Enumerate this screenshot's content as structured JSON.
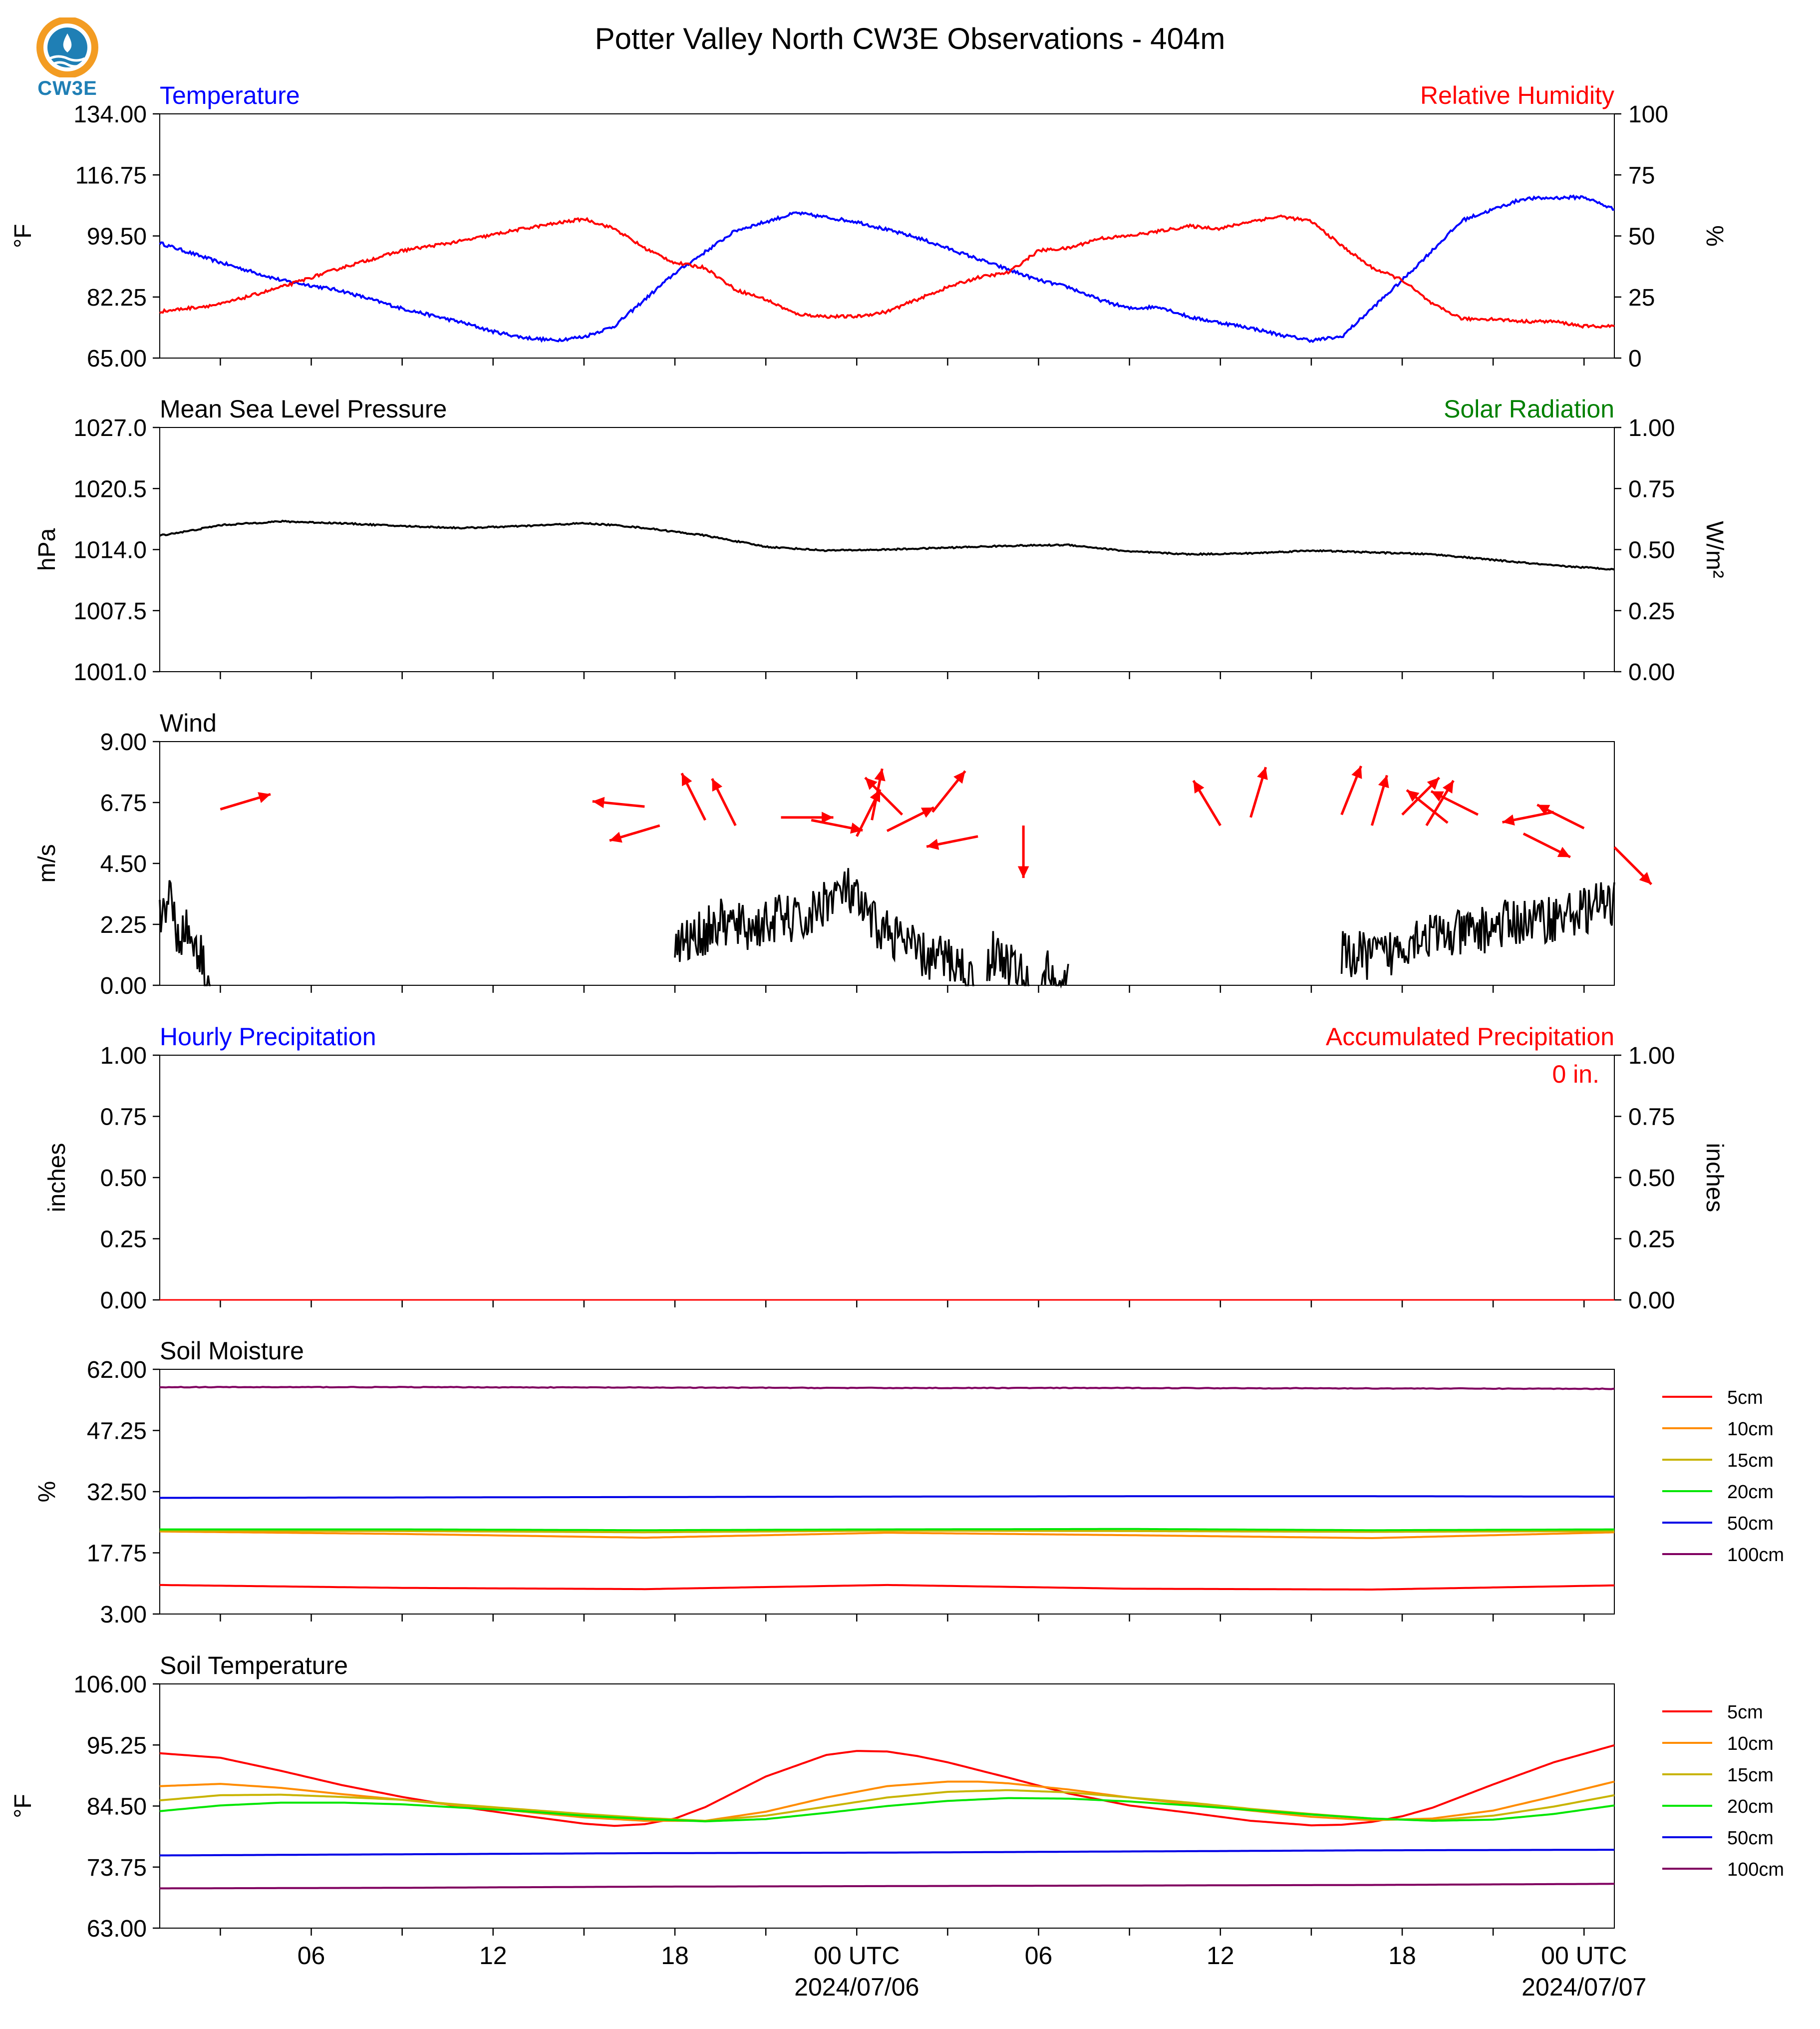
{
  "title": "Potter Valley North CW3E Observations - 404m",
  "logo": {
    "text": "CW3E",
    "colors": {
      "sun": "#f39c22",
      "water": "#1f7fb5"
    }
  },
  "colors": {
    "temperature": "#0000ff",
    "humidity": "#ff0000",
    "pressure": "#000000",
    "solar": "#008000",
    "wind_vector": "#ff0000",
    "wind_speed": "#000000",
    "hourly_precip": "#0000ff",
    "accum_precip": "#ff0000"
  },
  "x_axis": {
    "tick_labels": [
      "06",
      "12",
      "18",
      "00 UTC",
      "06",
      "12",
      "18",
      "00 UTC"
    ],
    "tick_hours": [
      6,
      12,
      18,
      24,
      30,
      36,
      42,
      48
    ],
    "date_labels": [
      {
        "hour": 24,
        "text": "2024/07/06"
      },
      {
        "hour": 48,
        "text": "2024/07/07"
      }
    ],
    "range_hours": [
      1,
      49
    ]
  },
  "panels": {
    "temp_rh": {
      "left_title": "Temperature",
      "right_title": "Relative Humidity",
      "ylabel_left": "°F",
      "ylabel_right": "%",
      "left_ticks": [
        "134.00",
        "116.75",
        "99.50",
        "82.25",
        "65.00"
      ],
      "left_range": [
        65,
        134
      ],
      "right_ticks": [
        "100",
        "75",
        "50",
        "25",
        "0"
      ],
      "right_range": [
        0,
        100
      ]
    },
    "pressure": {
      "left_title": "Mean Sea Level Pressure",
      "right_title": "Solar Radiation",
      "ylabel_left": "hPa",
      "ylabel_right": "W/m²",
      "left_ticks": [
        "1027.0",
        "1020.5",
        "1014.0",
        "1007.5",
        "1001.0"
      ],
      "left_range": [
        1001,
        1027
      ],
      "right_ticks": [
        "1.00",
        "0.75",
        "0.50",
        "0.25",
        "0.00"
      ],
      "right_range": [
        0,
        1
      ]
    },
    "wind": {
      "left_title": "Wind",
      "ylabel_left": "m/s",
      "left_ticks": [
        "9.00",
        "6.75",
        "4.50",
        "2.25",
        "0.00"
      ],
      "left_range": [
        0,
        9
      ]
    },
    "precip": {
      "left_title": "Hourly Precipitation",
      "right_title": "Accumulated Precipitation",
      "ylabel_left": "inches",
      "ylabel_right": "inches",
      "left_ticks": [
        "1.00",
        "0.75",
        "0.50",
        "0.25",
        "0.00"
      ],
      "left_range": [
        0,
        1
      ],
      "right_ticks": [
        "1.00",
        "0.75",
        "0.50",
        "0.25",
        "0.00"
      ],
      "right_range": [
        0,
        1
      ],
      "annotation": "0 in."
    },
    "soil_moisture": {
      "left_title": "Soil Moisture",
      "ylabel_left": "%",
      "left_ticks": [
        "62.00",
        "47.25",
        "32.50",
        "17.75",
        "3.00"
      ],
      "left_range": [
        3,
        62
      ]
    },
    "soil_temp": {
      "left_title": "Soil Temperature",
      "ylabel_left": "°F",
      "left_ticks": [
        "106.00",
        "95.25",
        "84.50",
        "73.75",
        "63.00"
      ],
      "left_range": [
        63,
        106
      ]
    }
  },
  "legend_depths": [
    {
      "name": "5cm",
      "color": "#ff0000"
    },
    {
      "name": "10cm",
      "color": "#ff8c00"
    },
    {
      "name": "15cm",
      "color": "#c8b400"
    },
    {
      "name": "20cm",
      "color": "#00e600"
    },
    {
      "name": "50cm",
      "color": "#0000e6"
    },
    {
      "name": "100cm",
      "color": "#800060"
    }
  ],
  "chart_data": [
    {
      "type": "line",
      "title": "Temperature / Relative Humidity",
      "series": [
        {
          "name": "Temperature",
          "axis": "left",
          "x": [
            1,
            3,
            5,
            7,
            9,
            11,
            12,
            13,
            14,
            15,
            16,
            18,
            20,
            22,
            24,
            26,
            28,
            30,
            31,
            32,
            33,
            34,
            35,
            36,
            37,
            38,
            39,
            40,
            42,
            44,
            46,
            48,
            49
          ],
          "y": [
            97.5,
            92,
            87,
            84,
            79,
            75,
            72.5,
            70.8,
            70,
            71,
            74,
            89,
            101,
            106,
            103.5,
            99,
            93,
            87,
            85,
            81.5,
            79,
            79.5,
            76.5,
            75,
            73.5,
            71.5,
            70,
            71,
            87,
            104,
            110,
            110.5,
            107
          ]
        },
        {
          "name": "Relative Humidity",
          "axis": "right",
          "x": [
            1,
            3,
            5,
            7,
            9,
            11,
            13,
            14,
            15,
            16,
            17,
            18,
            19,
            20,
            21,
            22,
            23,
            24,
            25,
            26,
            27,
            28,
            29,
            30,
            31,
            32,
            33,
            34,
            35,
            36,
            37,
            38,
            39,
            40,
            41,
            42,
            43,
            44,
            45,
            46,
            47,
            48,
            49
          ],
          "y": [
            19,
            22,
            29,
            37,
            44,
            48,
            53,
            55,
            57,
            53,
            45,
            39,
            37,
            28,
            24,
            18,
            17,
            17,
            19,
            24,
            29,
            33,
            35,
            44,
            45,
            49,
            50,
            52,
            54,
            53,
            56,
            58,
            56,
            46,
            37,
            32,
            22,
            16,
            16,
            15,
            15,
            13,
            13
          ]
        }
      ]
    },
    {
      "type": "line",
      "title": "Mean Sea Level Pressure",
      "series": [
        {
          "name": "Mean Sea Level Pressure",
          "x": [
            1,
            2,
            3,
            5,
            7,
            9,
            11,
            13,
            15,
            16,
            17,
            19,
            21,
            23,
            25,
            27,
            29,
            31,
            33,
            35,
            37,
            39,
            41,
            43,
            45,
            47,
            49
          ],
          "y": [
            1015.5,
            1016.0,
            1016.6,
            1017.0,
            1016.8,
            1016.5,
            1016.3,
            1016.5,
            1016.8,
            1016.6,
            1016.3,
            1015.5,
            1014.3,
            1013.9,
            1014.0,
            1014.2,
            1014.4,
            1014.5,
            1013.8,
            1013.5,
            1013.6,
            1013.9,
            1013.7,
            1013.5,
            1012.9,
            1012.3,
            1011.9
          ]
        }
      ]
    },
    {
      "type": "line",
      "title": "Wind",
      "series": [
        {
          "name": "Wind Speed",
          "x": [
            1,
            1.3,
            1.6,
            2.0,
            2.4,
            2.6,
            18.0,
            18.7,
            19.5,
            20.5,
            21.5,
            22.3,
            23.0,
            23.7,
            24.5,
            25.3,
            26.3,
            27.0,
            27.6,
            27.8,
            28.5,
            29.2,
            29.6,
            30.2,
            30.6,
            31.0,
            32.0,
            33.0,
            34.0,
            35.0,
            37.5,
            38.5,
            39.5,
            40.5,
            41.5,
            42.5,
            43.5,
            44.5,
            45.5,
            46.5,
            47.5,
            48.3,
            49.0
          ],
          "y": [
            2.4,
            3.5,
            1.9,
            2.0,
            1.0,
            0.0,
            1.4,
            1.8,
            2.3,
            2.1,
            2.5,
            2.3,
            3.2,
            3.5,
            2.3,
            1.8,
            1.0,
            1.0,
            0.6,
            0.0,
            1.2,
            0.7,
            0.0,
            0.6,
            0.0,
            0.0,
            0.0,
            0.0,
            0.0,
            0.0,
            0.7,
            0.9,
            1.1,
            1.1,
            1.1,
            1.9,
            1.8,
            2.0,
            2.3,
            2.4,
            2.6,
            2.9,
            3.0
          ]
        },
        {
          "name": "Wind Direction",
          "x": [
            3,
            17.0,
            17.5,
            19.0,
            20.0,
            21.5,
            22.5,
            24.0,
            24.5,
            25.0,
            25.5,
            26.5,
            28.0,
            29.5,
            36.0,
            37.0,
            40.0,
            41.0,
            42.0,
            42.8,
            43.5,
            44.5,
            46.0,
            47.0,
            48.0,
            49.0
          ],
          "y": [
            6.5,
            6.6,
            5.9,
            6.1,
            5.9,
            6.2,
            6.1,
            5.5,
            6.1,
            5.7,
            6.3,
            6.4,
            5.5,
            5.9,
            5.9,
            6.2,
            6.3,
            5.9,
            6.3,
            5.9,
            6.0,
            6.3,
            5.6,
            6.4,
            5.8,
            5.1
          ],
          "u": [
            1,
            -1,
            -1,
            -0.5,
            -0.5,
            1,
            1,
            0.5,
            0.2,
            1,
            -1,
            0.8,
            -1,
            0,
            -0.6,
            0.3,
            0.4,
            0.3,
            1,
            0.6,
            -1,
            -1,
            1,
            -1,
            -1,
            0.5
          ],
          "v": [
            0.3,
            0.1,
            -0.3,
            1,
            1,
            0,
            -0.2,
            1,
            1,
            0.5,
            1,
            1,
            -0.2,
            -1,
            1,
            1,
            1,
            1,
            1,
            1,
            0.8,
            0.5,
            -0.5,
            -0.2,
            0.5,
            -0.5
          ]
        }
      ]
    },
    {
      "type": "line",
      "title": "Hourly / Accumulated Precipitation",
      "series": [
        {
          "name": "Hourly Precipitation",
          "x": [
            1,
            49
          ],
          "y": [
            0,
            0
          ]
        },
        {
          "name": "Accumulated Precipitation",
          "x": [
            1,
            49
          ],
          "y": [
            0,
            0
          ]
        }
      ]
    },
    {
      "type": "line",
      "title": "Soil Moisture",
      "series": [
        {
          "name": "5cm",
          "x": [
            1,
            9,
            17,
            25,
            33,
            41,
            49
          ],
          "y": [
            10.0,
            9.3,
            9.0,
            10.0,
            9.1,
            8.9,
            9.9
          ]
        },
        {
          "name": "10cm",
          "x": [
            1,
            9,
            17,
            25,
            33,
            41,
            49
          ],
          "y": [
            22.9,
            22.3,
            21.4,
            22.6,
            22.0,
            21.3,
            22.7
          ]
        },
        {
          "name": "15cm",
          "x": [
            1,
            9,
            17,
            25,
            33,
            41,
            49
          ],
          "y": [
            23.1,
            23.0,
            22.7,
            23.1,
            23.0,
            22.8,
            23.0
          ]
        },
        {
          "name": "20cm",
          "x": [
            1,
            9,
            17,
            25,
            33,
            41,
            49
          ],
          "y": [
            23.4,
            23.4,
            23.2,
            23.4,
            23.5,
            23.2,
            23.4
          ]
        },
        {
          "name": "50cm",
          "x": [
            1,
            9,
            17,
            25,
            33,
            41,
            49
          ],
          "y": [
            31.0,
            31.1,
            31.2,
            31.3,
            31.4,
            31.4,
            31.3
          ]
        },
        {
          "name": "100cm",
          "x": [
            1,
            9,
            17,
            25,
            33,
            41,
            49
          ],
          "y": [
            57.7,
            57.7,
            57.6,
            57.5,
            57.5,
            57.4,
            57.3
          ]
        }
      ]
    },
    {
      "type": "line",
      "title": "Soil Temperature",
      "series": [
        {
          "name": "5cm",
          "x": [
            1,
            3,
            5,
            7,
            9,
            11,
            13,
            15,
            16,
            17,
            18,
            19,
            21,
            23,
            24,
            25,
            26,
            27,
            29,
            31,
            33,
            35,
            37,
            39,
            40,
            41,
            42,
            43,
            45,
            47,
            49
          ],
          "y": [
            93.8,
            93.0,
            90.7,
            88.2,
            86.1,
            84.3,
            82.8,
            81.4,
            81.0,
            81.3,
            82.3,
            84.3,
            89.7,
            93.5,
            94.2,
            94.1,
            93.3,
            92.2,
            89.5,
            86.7,
            84.6,
            83.3,
            81.9,
            81.1,
            81.2,
            81.7,
            82.7,
            84.2,
            88.3,
            92.2,
            95.2
          ]
        },
        {
          "name": "10cm",
          "x": [
            1,
            3,
            5,
            7,
            9,
            11,
            13,
            15,
            17,
            19,
            21,
            23,
            25,
            27,
            28,
            29,
            31,
            33,
            35,
            37,
            39,
            41,
            43,
            45,
            47,
            49
          ],
          "y": [
            88.0,
            88.4,
            87.7,
            86.6,
            85.6,
            84.5,
            83.5,
            82.5,
            81.9,
            81.9,
            83.5,
            86.0,
            88.0,
            88.8,
            88.8,
            88.5,
            87.4,
            86.0,
            84.8,
            83.7,
            82.6,
            82.0,
            82.3,
            83.7,
            86.2,
            88.8
          ]
        },
        {
          "name": "15cm",
          "x": [
            1,
            3,
            5,
            7,
            9,
            11,
            13,
            15,
            17,
            19,
            21,
            23,
            25,
            27,
            29,
            31,
            33,
            35,
            37,
            39,
            41,
            43,
            45,
            47,
            49
          ],
          "y": [
            85.5,
            86.4,
            86.5,
            86.1,
            85.6,
            84.7,
            83.9,
            83.1,
            82.4,
            81.9,
            82.8,
            84.4,
            86.0,
            87.0,
            87.3,
            86.9,
            86.0,
            85.1,
            84.0,
            83.1,
            82.3,
            82.0,
            82.8,
            84.4,
            86.4
          ]
        },
        {
          "name": "20cm",
          "x": [
            1,
            3,
            5,
            7,
            9,
            11,
            13,
            15,
            17,
            19,
            21,
            23,
            25,
            27,
            29,
            31,
            33,
            35,
            37,
            39,
            41,
            43,
            45,
            47,
            49
          ],
          "y": [
            83.6,
            84.6,
            85.1,
            85.1,
            84.8,
            84.2,
            83.6,
            82.8,
            82.2,
            81.8,
            82.2,
            83.3,
            84.5,
            85.4,
            85.9,
            85.8,
            85.3,
            84.6,
            83.8,
            83.0,
            82.3,
            81.9,
            82.1,
            83.1,
            84.6
          ]
        },
        {
          "name": "50cm",
          "x": [
            1,
            9,
            17,
            25,
            33,
            41,
            49
          ],
          "y": [
            75.8,
            76.0,
            76.2,
            76.3,
            76.5,
            76.7,
            76.8
          ]
        },
        {
          "name": "100cm",
          "x": [
            1,
            9,
            17,
            25,
            33,
            41,
            49
          ],
          "y": [
            70.0,
            70.1,
            70.3,
            70.4,
            70.5,
            70.6,
            70.8
          ]
        }
      ]
    }
  ]
}
